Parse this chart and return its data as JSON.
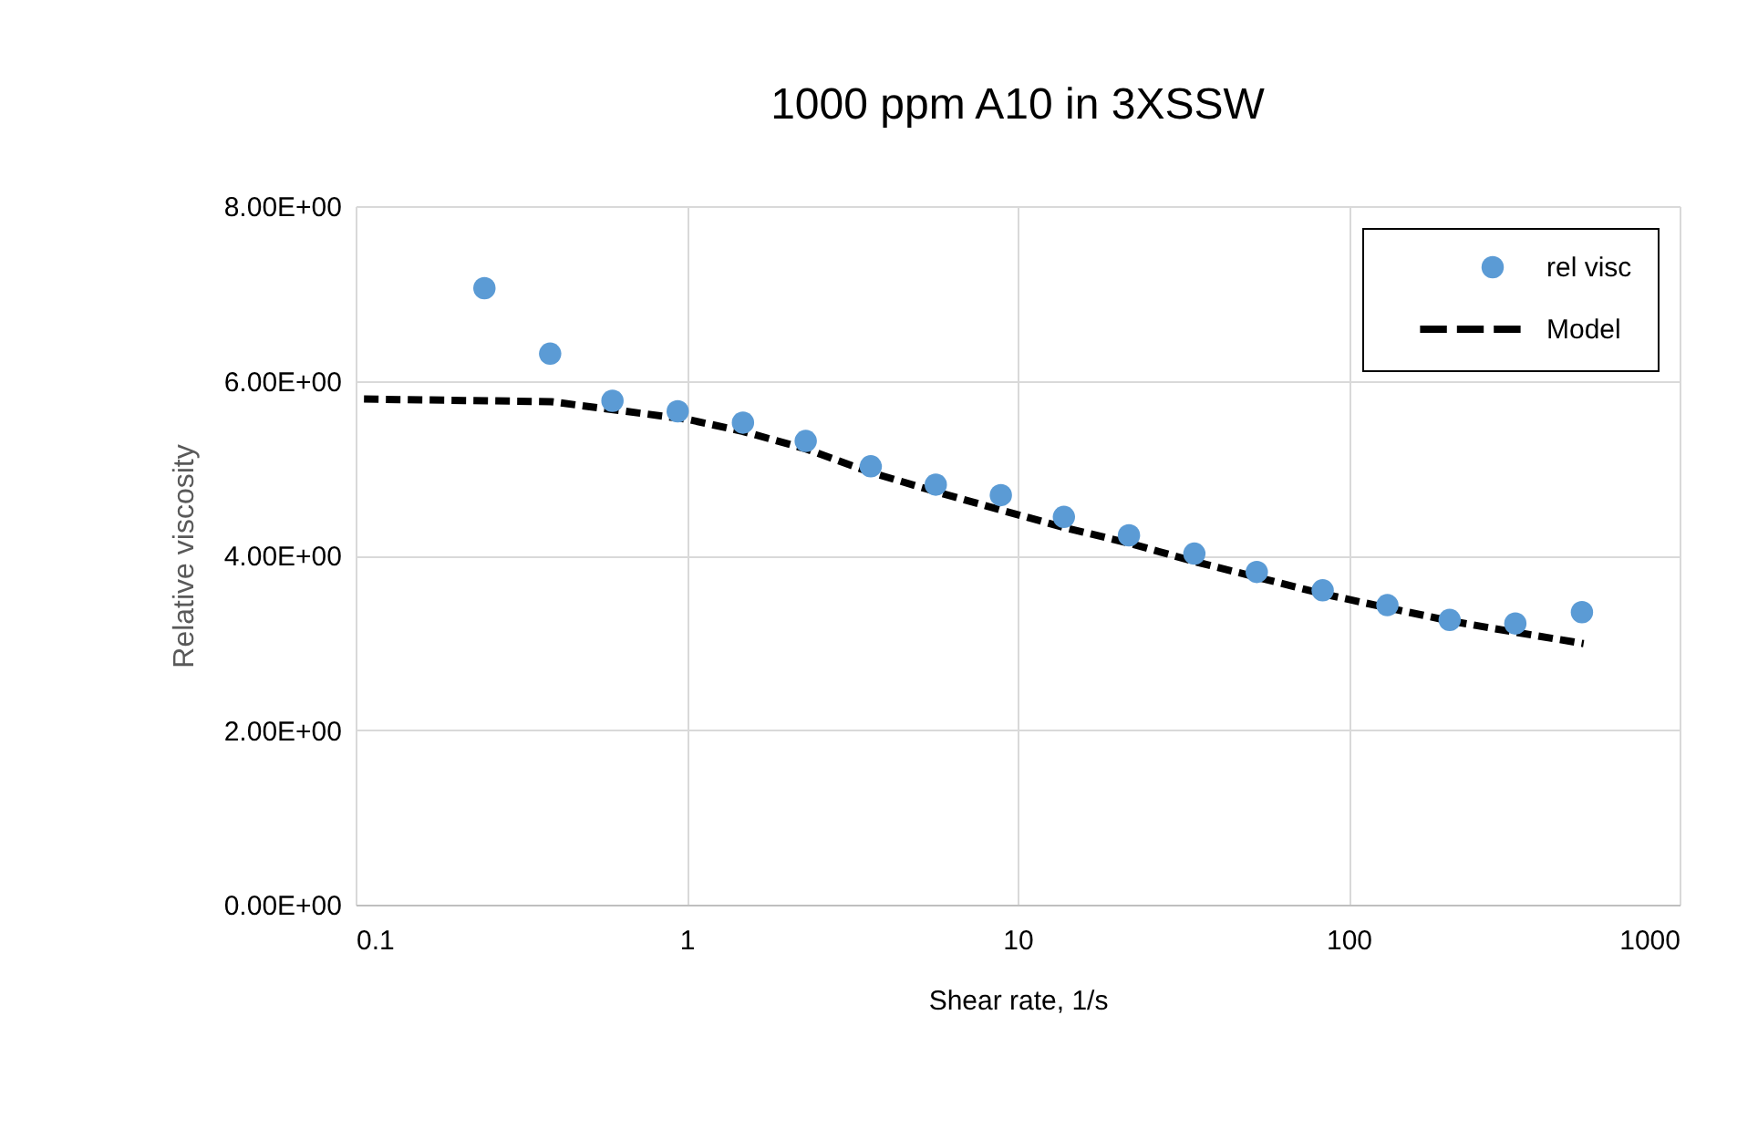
{
  "chart_data": {
    "type": "scatter",
    "title": "1000 ppm A10 in 3XSSW",
    "xlabel": "Shear rate, 1/s",
    "ylabel": "Relative viscosity",
    "log": "x",
    "grid": true,
    "legend": "top right",
    "xlim": [
      0.1,
      1000
    ],
    "xticks": [
      0.1,
      1,
      10,
      100,
      1000
    ],
    "ylim": [
      0,
      8
    ],
    "yticks": [
      {
        "value": 0,
        "label": "0.00E+00"
      },
      {
        "value": 2,
        "label": "2.00E+00"
      },
      {
        "value": 4,
        "label": "4.00E+00"
      },
      {
        "value": 6,
        "label": "6.00E+00"
      },
      {
        "value": 8,
        "label": "8.00E+00"
      }
    ],
    "series": [
      {
        "name": "rel visc",
        "marker": "circle",
        "color": "#5b9bd5",
        "x": [
          0.245,
          0.387,
          0.597,
          0.94,
          1.48,
          2.29,
          3.6,
          5.66,
          8.9,
          13.8,
          21.7,
          34.2,
          52.8,
          83.5,
          131,
          202,
          319,
          507
        ],
        "values": [
          7.06,
          6.31,
          5.77,
          5.65,
          5.52,
          5.31,
          5.02,
          4.81,
          4.69,
          4.44,
          4.23,
          4.02,
          3.81,
          3.6,
          3.43,
          3.26,
          3.22,
          3.35
        ]
      },
      {
        "name": "Model",
        "type": "line",
        "line_style": "dashed",
        "color": "#000000",
        "x": [
          0.106,
          0.39,
          1,
          1.48,
          2.29,
          3.6,
          5.66,
          8.9,
          13.8,
          21.7,
          34.2,
          52.8,
          83.5,
          131,
          202,
          319,
          513
        ],
        "values": [
          5.79,
          5.76,
          5.56,
          5.42,
          5.22,
          4.95,
          4.73,
          4.52,
          4.32,
          4.14,
          3.93,
          3.75,
          3.56,
          3.4,
          3.25,
          3.12,
          2.99
        ]
      }
    ]
  }
}
